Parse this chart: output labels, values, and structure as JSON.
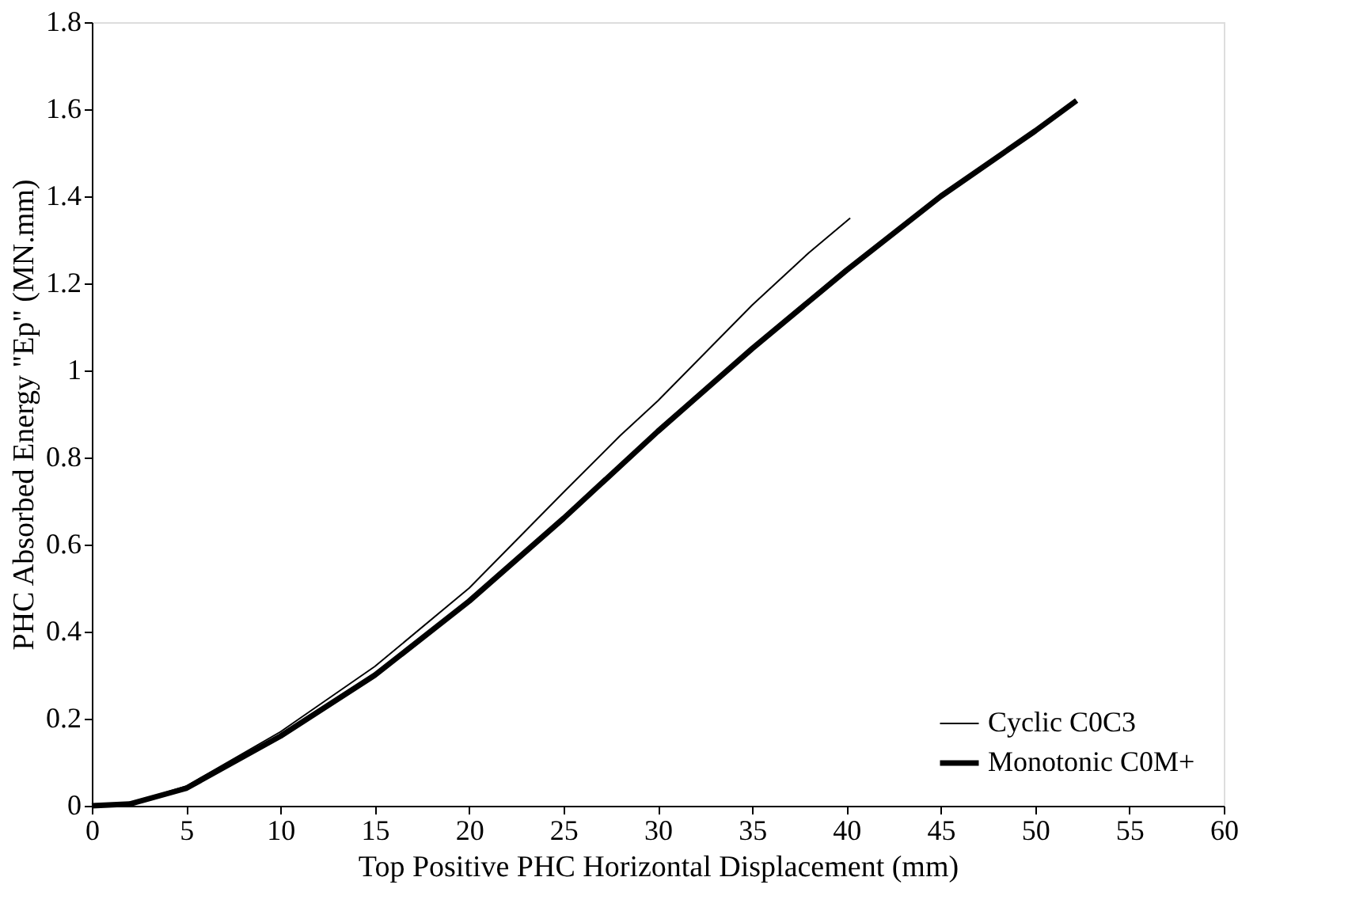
{
  "chart_data": {
    "type": "line",
    "xlabel": "Top Positive PHC Horizontal Displacement (mm)",
    "ylabel": "PHC Absorbed Energy \"Ep\" (MN.mm)",
    "xlim": [
      0,
      60
    ],
    "xticks": [
      0,
      5,
      10,
      15,
      20,
      25,
      30,
      35,
      40,
      45,
      50,
      55,
      60
    ],
    "ylim": [
      0,
      1.8
    ],
    "yticks": [
      0,
      0.2,
      0.4,
      0.6,
      0.8,
      1,
      1.2,
      1.4,
      1.6,
      1.8
    ],
    "legend": "bottom right",
    "grid": false,
    "series": [
      {
        "name": "Cyclic C0C3",
        "color": "#000000",
        "x": [
          0,
          2,
          5,
          10,
          15,
          20,
          25,
          28,
          30,
          35,
          38,
          40.2
        ],
        "values": [
          0,
          0.005,
          0.045,
          0.17,
          0.32,
          0.5,
          0.72,
          0.85,
          0.93,
          1.15,
          1.27,
          1.35
        ]
      },
      {
        "name": "Monotonic C0M+",
        "color": "#000000",
        "x": [
          0,
          2,
          5,
          10,
          15,
          20,
          25,
          30,
          35,
          40,
          45,
          50,
          52.2
        ],
        "values": [
          0,
          0.004,
          0.04,
          0.16,
          0.3,
          0.47,
          0.66,
          0.86,
          1.05,
          1.23,
          1.4,
          1.55,
          1.62
        ]
      }
    ]
  }
}
